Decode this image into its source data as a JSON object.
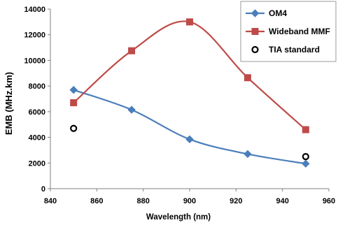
{
  "chart_data": {
    "type": "line",
    "title": "",
    "xlabel": "Wavelength (nm)",
    "ylabel": "EMB (MHz.km)",
    "xlim": [
      840,
      960
    ],
    "ylim": [
      0,
      14000
    ],
    "x_ticks": [
      840,
      860,
      880,
      900,
      920,
      940,
      960
    ],
    "y_ticks": [
      0,
      2000,
      4000,
      6000,
      8000,
      10000,
      12000,
      14000
    ],
    "grid": false,
    "legend_position": "top-right",
    "series": [
      {
        "name": "OM4",
        "color": "#4a7ebb",
        "marker": "diamond",
        "smooth": true,
        "x": [
          850,
          875,
          900,
          925,
          950
        ],
        "y": [
          7700,
          6150,
          3850,
          2700,
          1950
        ]
      },
      {
        "name": "Wideband MMF",
        "color": "#be4b48",
        "marker": "square",
        "smooth": true,
        "x": [
          850,
          875,
          900,
          925,
          950
        ],
        "y": [
          6700,
          10750,
          13000,
          8650,
          4600
        ]
      },
      {
        "name": "TIA standard",
        "color": "#000000",
        "marker": "open-circle",
        "line": false,
        "x": [
          850,
          950
        ],
        "y": [
          4700,
          2500
        ]
      }
    ]
  }
}
